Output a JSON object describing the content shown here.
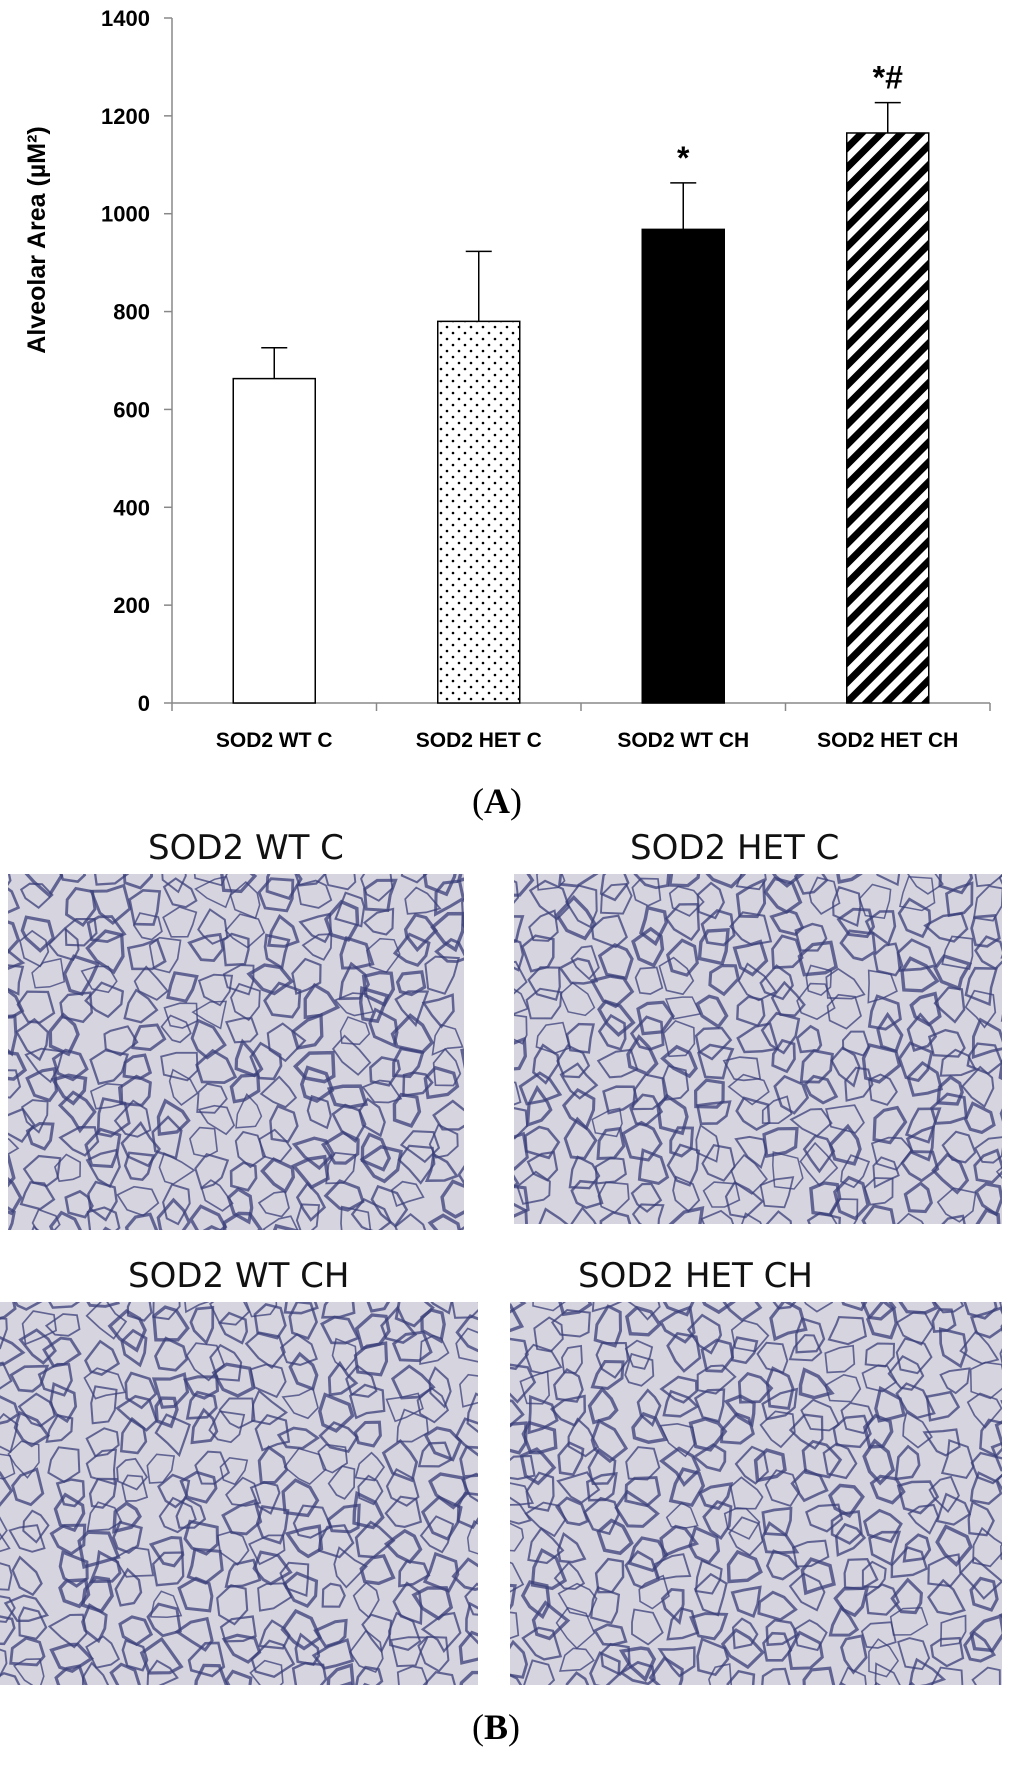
{
  "chart_data": {
    "type": "bar",
    "ylabel": "Alveolar Area (µM²)",
    "ylim": [
      0,
      1400
    ],
    "yticks": [
      0,
      200,
      400,
      600,
      800,
      1000,
      1200,
      1400
    ],
    "categories": [
      "SOD2 WT C",
      "SOD2 HET C",
      "SOD2 WT CH",
      "SOD2 HET CH"
    ],
    "values": [
      663,
      780,
      968,
      1165
    ],
    "errors": [
      63,
      143,
      95,
      62
    ],
    "annotations": [
      "",
      "",
      "*",
      "*#"
    ],
    "patterns": [
      "white",
      "dots",
      "solid-black",
      "diagonal-stripes"
    ],
    "grid": false
  },
  "panels": {
    "a_label": "A",
    "b_label": "B"
  },
  "micrographs": [
    {
      "title": "SOD2 WT C"
    },
    {
      "title": "SOD2 HET C"
    },
    {
      "title": "SOD2 WT CH"
    },
    {
      "title": "SOD2 HET CH"
    }
  ],
  "colors": {
    "bar_stroke": "#000000",
    "tissue": "#3a3f7a",
    "background_field": "#d6d4de"
  }
}
